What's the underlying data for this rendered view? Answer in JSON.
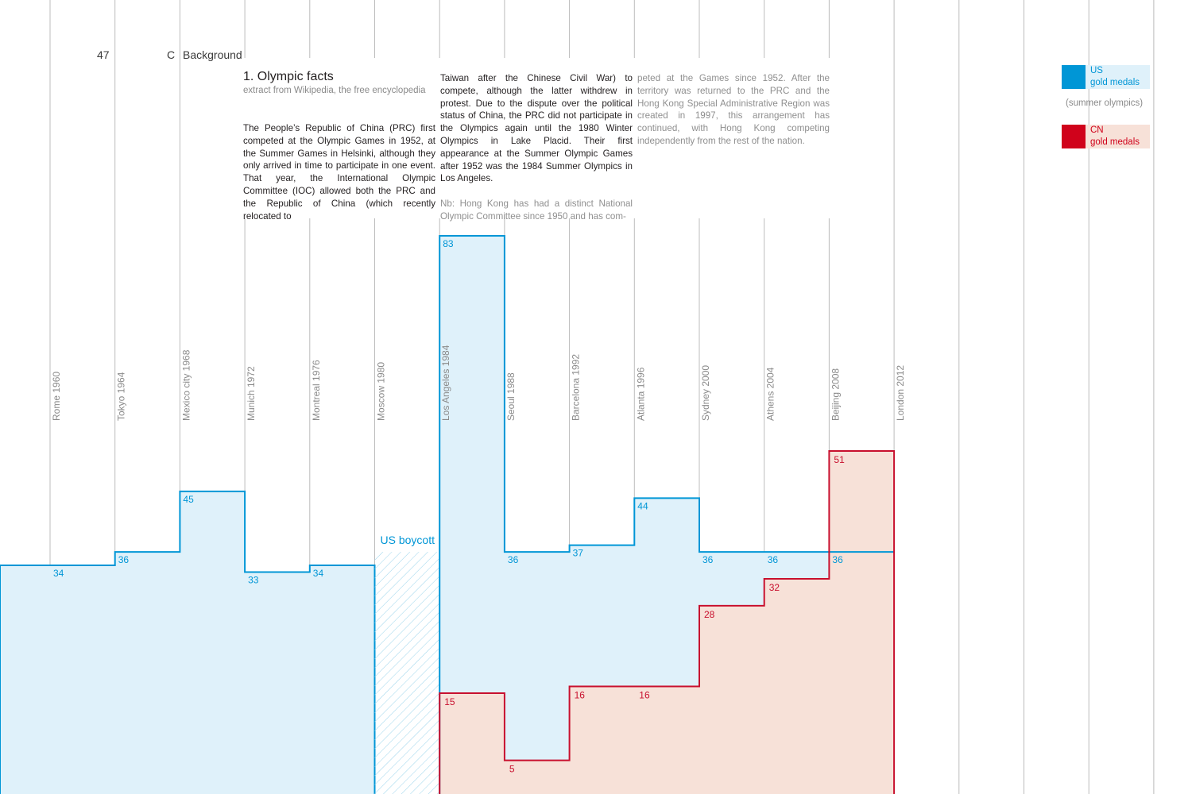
{
  "header": {
    "page_number": "47",
    "section_letter": "C",
    "section_name": "Background"
  },
  "article": {
    "title": "1. Olympic facts",
    "subtitle": "extract from Wikipedia, the free encyclopedia",
    "col1_p1": "The People’s Republic of China (PRC) first competed at the Olympic Games in 1952, at the Summer Games in Helsinki, although they only arrived in time to participate in one event. That year, the International Olympic Committee (IOC) allowed both the PRC and the Republic of China (which recently relocated to",
    "col2_p1": "Taiwan after the Chinese Civil War) to compete, although the latter withdrew in protest. Due to the dispute over the political status of China, the PRC did not participate in the Olympics again until the 1980 Winter Olympics in Lake Placid. Their first appearance at the Summer Olympic Games after 1952 was the 1984 Summer Olympics in Los Angeles.",
    "col2_p2": "Nb: Hong Kong has had a distinct National Olympic Committee since 1950 and has com-",
    "col3_p1": "peted at the Games since 1952. After the territory was returned to the PRC and the Hong Kong Special Administrative Region was created in 1997, this arrangement has continued, with Hong Kong competing independently from the rest of the nation."
  },
  "legend": {
    "us_code": "US",
    "us_label": "gold medals",
    "us_color": "#0096d6",
    "note": "(summer olympics)",
    "cn_code": "CN",
    "cn_label": "gold medals",
    "cn_color": "#d0021b"
  },
  "chart_data": {
    "type": "area",
    "style": "step",
    "categories": [
      "Rome 1960",
      "Tokyo 1964",
      "Mexico city 1968",
      "Munich 1972",
      "Montreal 1976",
      "Moscow 1980",
      "Los Angeles 1984",
      "Seoul 1988",
      "Barcelona 1992",
      "Atlanta 1996",
      "Sydney 2000",
      "Athens 2004",
      "Beijing 2008",
      "London 2012"
    ],
    "series": [
      {
        "name": "US gold medals",
        "color": "#0096d6",
        "fill": "#dff1fa",
        "values": [
          34,
          36,
          45,
          33,
          34,
          null,
          83,
          36,
          37,
          44,
          36,
          36,
          36,
          null
        ]
      },
      {
        "name": "CN gold medals",
        "color": "#c8102e",
        "fill": "#f7e1d8",
        "values": [
          null,
          null,
          null,
          null,
          null,
          null,
          15,
          5,
          16,
          16,
          28,
          32,
          51,
          null
        ]
      }
    ],
    "annotations": [
      {
        "category": "Moscow 1980",
        "text": "US boycott"
      }
    ]
  }
}
